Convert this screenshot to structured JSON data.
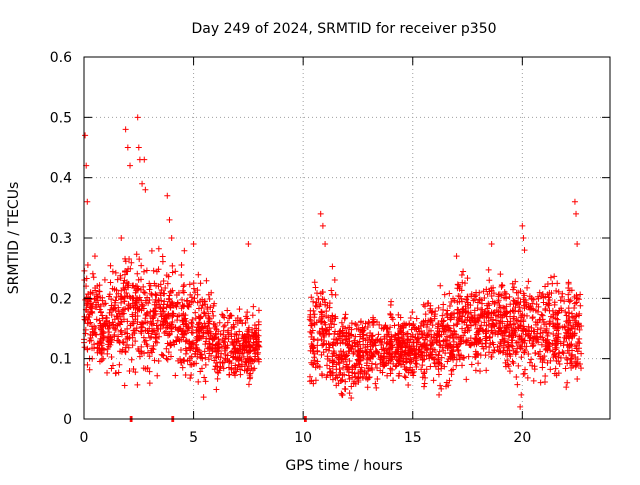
{
  "chart_data": {
    "type": "scatter",
    "title": "Day 249 of 2024, SRMTID for receiver p350",
    "xlabel": "GPS time / hours",
    "ylabel": "SRMTID / TECUs",
    "xlim": [
      0,
      24
    ],
    "ylim": [
      0,
      0.6
    ],
    "xticks": [
      0,
      5,
      10,
      15,
      20
    ],
    "xtick_labels": [
      "0",
      "5",
      "10",
      "15",
      "20"
    ],
    "yticks": [
      0,
      0.1,
      0.2,
      0.3,
      0.4,
      0.5,
      0.6
    ],
    "ytick_labels": [
      "0",
      "0.1",
      "0.2",
      "0.3",
      "0.4",
      "0.5",
      "0.6"
    ],
    "grid": true,
    "marker": "plus",
    "color": "#ff0000",
    "gap_hours": [
      8.0,
      10.3
    ],
    "zero_markers_x": [
      2.15,
      4.05,
      10.1
    ],
    "segments": [
      {
        "t0": 0.0,
        "t1": 0.6,
        "mean": 0.17,
        "spread": 0.05
      },
      {
        "t0": 0.6,
        "t1": 1.8,
        "mean": 0.16,
        "spread": 0.05
      },
      {
        "t0": 1.8,
        "t1": 3.2,
        "mean": 0.17,
        "spread": 0.06
      },
      {
        "t0": 3.2,
        "t1": 4.6,
        "mean": 0.17,
        "spread": 0.055
      },
      {
        "t0": 4.6,
        "t1": 6.0,
        "mean": 0.15,
        "spread": 0.05
      },
      {
        "t0": 6.0,
        "t1": 8.0,
        "mean": 0.12,
        "spread": 0.035
      },
      {
        "t0": 10.3,
        "t1": 11.5,
        "mean": 0.14,
        "spread": 0.055
      },
      {
        "t0": 11.5,
        "t1": 13.0,
        "mean": 0.11,
        "spread": 0.04
      },
      {
        "t0": 13.0,
        "t1": 15.5,
        "mean": 0.12,
        "spread": 0.035
      },
      {
        "t0": 15.5,
        "t1": 17.0,
        "mean": 0.13,
        "spread": 0.045
      },
      {
        "t0": 17.0,
        "t1": 19.0,
        "mean": 0.16,
        "spread": 0.05
      },
      {
        "t0": 19.0,
        "t1": 21.0,
        "mean": 0.15,
        "spread": 0.05
      },
      {
        "t0": 21.0,
        "t1": 22.7,
        "mean": 0.15,
        "spread": 0.05
      }
    ],
    "peaks": [
      {
        "x": 0.05,
        "y": 0.47
      },
      {
        "x": 0.1,
        "y": 0.42
      },
      {
        "x": 0.15,
        "y": 0.36
      },
      {
        "x": 0.5,
        "y": 0.27
      },
      {
        "x": 1.7,
        "y": 0.3
      },
      {
        "x": 1.9,
        "y": 0.48
      },
      {
        "x": 2.0,
        "y": 0.45
      },
      {
        "x": 2.1,
        "y": 0.42
      },
      {
        "x": 2.45,
        "y": 0.5
      },
      {
        "x": 2.5,
        "y": 0.45
      },
      {
        "x": 2.55,
        "y": 0.43
      },
      {
        "x": 2.65,
        "y": 0.39
      },
      {
        "x": 2.75,
        "y": 0.43
      },
      {
        "x": 2.8,
        "y": 0.38
      },
      {
        "x": 3.8,
        "y": 0.37
      },
      {
        "x": 3.9,
        "y": 0.33
      },
      {
        "x": 4.0,
        "y": 0.3
      },
      {
        "x": 5.0,
        "y": 0.29
      },
      {
        "x": 7.5,
        "y": 0.29
      },
      {
        "x": 10.8,
        "y": 0.34
      },
      {
        "x": 10.9,
        "y": 0.32
      },
      {
        "x": 11.0,
        "y": 0.29
      },
      {
        "x": 17.0,
        "y": 0.27
      },
      {
        "x": 18.6,
        "y": 0.29
      },
      {
        "x": 20.0,
        "y": 0.32
      },
      {
        "x": 20.05,
        "y": 0.3
      },
      {
        "x": 20.1,
        "y": 0.28
      },
      {
        "x": 22.4,
        "y": 0.36
      },
      {
        "x": 22.45,
        "y": 0.34
      },
      {
        "x": 22.5,
        "y": 0.29
      }
    ],
    "lows": [
      {
        "x": 11.8,
        "y": 0.04
      },
      {
        "x": 11.9,
        "y": 0.05
      },
      {
        "x": 16.2,
        "y": 0.04
      },
      {
        "x": 16.3,
        "y": 0.05
      },
      {
        "x": 19.9,
        "y": 0.02
      },
      {
        "x": 19.95,
        "y": 0.04
      }
    ]
  }
}
